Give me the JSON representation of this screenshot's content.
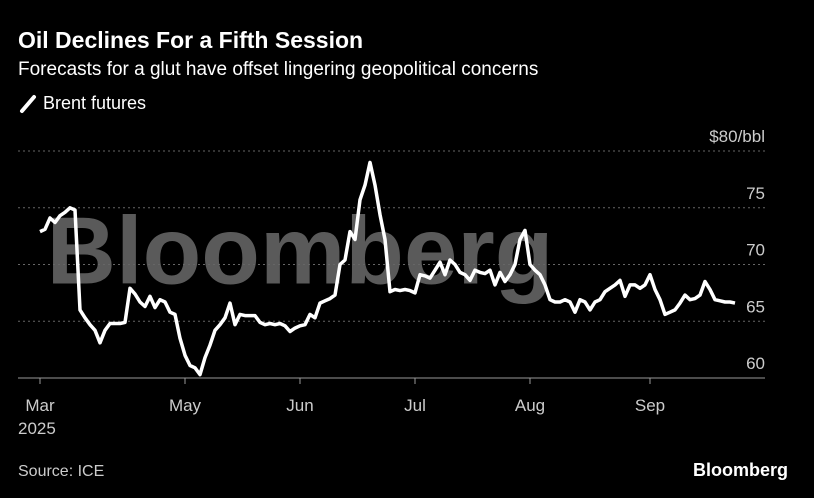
{
  "chart_data": {
    "type": "line",
    "title": "Oil Declines For a Fifth Session",
    "subtitle": "Forecasts for a glut have offset lingering geopolitical concerns",
    "source": "Source: ICE",
    "logo": "Bloomberg",
    "watermark": "Bloomberg",
    "year": "2025",
    "categories": [
      "Mar",
      null,
      null,
      null,
      null,
      null,
      null,
      null,
      null,
      null,
      null,
      null,
      null,
      null,
      null,
      null,
      null,
      null,
      null,
      null,
      null,
      null,
      null,
      null,
      null,
      null,
      null,
      null,
      null,
      "May",
      null,
      null,
      null,
      null,
      null,
      null,
      null,
      null,
      null,
      null,
      null,
      null,
      null,
      null,
      null,
      null,
      null,
      null,
      null,
      null,
      null,
      null,
      "Jun",
      null,
      null,
      null,
      null,
      null,
      null,
      null,
      null,
      null,
      null,
      null,
      null,
      null,
      null,
      null,
      null,
      null,
      null,
      null,
      null,
      null,
      null,
      "Jul",
      null,
      null,
      null,
      null,
      null,
      null,
      null,
      null,
      null,
      null,
      null,
      null,
      null,
      null,
      null,
      null,
      null,
      null,
      null,
      null,
      null,
      null,
      "Aug",
      null,
      null,
      null,
      null,
      null,
      null,
      null,
      null,
      null,
      null,
      null,
      null,
      null,
      null,
      null,
      null,
      null,
      null,
      null,
      null,
      null,
      null,
      null,
      "Sep",
      null,
      null,
      null,
      null,
      null,
      null,
      null,
      null,
      null,
      null,
      null,
      null,
      null,
      null,
      null,
      null,
      null
    ],
    "series": [
      {
        "name": "Brent futures",
        "color": "#ffffff",
        "values": [
          72.9,
          73.1,
          74.1,
          73.7,
          74.3,
          74.6,
          75.0,
          74.8,
          66.0,
          65.3,
          64.7,
          64.2,
          63.1,
          64.2,
          64.8,
          64.8,
          64.8,
          64.9,
          67.9,
          67.4,
          66.7,
          66.3,
          67.2,
          66.2,
          66.9,
          66.7,
          65.8,
          65.6,
          63.5,
          62.0,
          61.1,
          60.9,
          60.3,
          61.8,
          62.9,
          64.2,
          64.7,
          65.3,
          66.6,
          64.7,
          65.6,
          65.5,
          65.5,
          65.5,
          64.9,
          64.7,
          64.8,
          64.7,
          64.8,
          64.6,
          64.1,
          64.4,
          64.6,
          64.7,
          65.6,
          65.3,
          66.6,
          66.8,
          67.0,
          67.3,
          70.0,
          70.4,
          72.9,
          72.2,
          75.7,
          77.0,
          79.0,
          77.0,
          74.4,
          72.2,
          67.6,
          67.8,
          67.7,
          67.8,
          67.7,
          67.5,
          69.1,
          69.0,
          68.8,
          69.5,
          70.2,
          69.1,
          70.4,
          70.0,
          69.3,
          69.1,
          68.6,
          69.5,
          69.3,
          69.2,
          69.5,
          68.2,
          69.3,
          68.5,
          69.1,
          70.0,
          72.2,
          73.0,
          70.0,
          69.5,
          69.1,
          68.2,
          66.9,
          66.7,
          66.7,
          66.9,
          66.7,
          65.8,
          66.9,
          66.7,
          66.0,
          66.7,
          66.9,
          67.6,
          67.9,
          68.2,
          68.6,
          67.2,
          68.2,
          68.2,
          67.9,
          68.2,
          69.1,
          67.8,
          66.9,
          65.6,
          65.8,
          66.0,
          66.6,
          67.3,
          66.9,
          67.0,
          67.3,
          68.5,
          67.8,
          66.9,
          66.8,
          66.7,
          66.7,
          66.6
        ]
      }
    ],
    "ylim": [
      60,
      80
    ],
    "yticks": [
      60,
      65,
      70,
      75,
      {
        "value": 80,
        "label": "$80/bbl"
      }
    ],
    "grid": true
  }
}
